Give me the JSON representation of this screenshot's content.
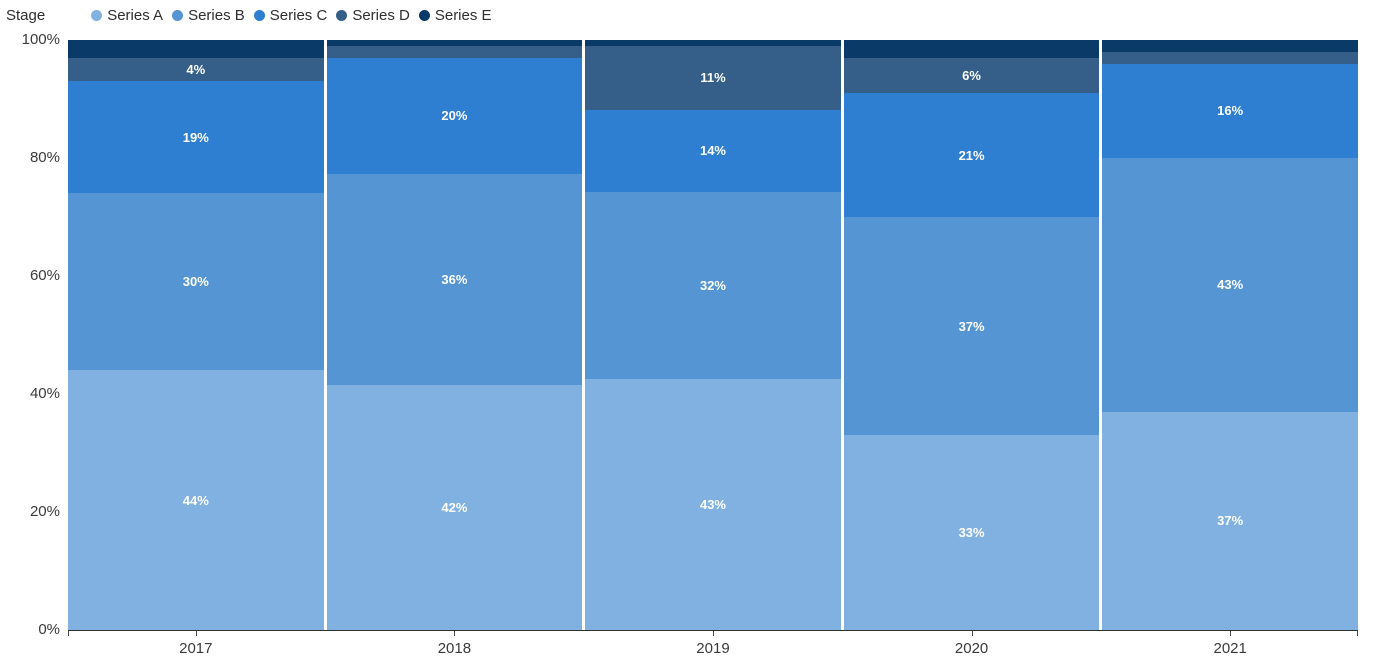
{
  "legend": {
    "title": "Stage",
    "items": [
      {
        "label": "Series A",
        "color": "#80b1e0"
      },
      {
        "label": "Series B",
        "color": "#5695d3"
      },
      {
        "label": "Series C",
        "color": "#2e7fd1"
      },
      {
        "label": "Series D",
        "color": "#355f88"
      },
      {
        "label": "Series E",
        "color": "#0a3a68"
      }
    ]
  },
  "y_axis": {
    "ticks": [
      "0%",
      "20%",
      "40%",
      "60%",
      "80%",
      "100%"
    ]
  },
  "chart_data": {
    "type": "bar",
    "variant": "100-percent-stacked-column",
    "title": "",
    "legend_title": "Stage",
    "legend_position": "top-left",
    "grid": false,
    "categories": [
      "2017",
      "2018",
      "2019",
      "2020",
      "2021"
    ],
    "series": [
      {
        "name": "Series A",
        "color": "#80b1e0",
        "values": [
          44,
          42,
          43,
          33,
          37
        ],
        "labels": [
          "44%",
          "42%",
          "43%",
          "33%",
          "37%"
        ]
      },
      {
        "name": "Series B",
        "color": "#5695d3",
        "values": [
          30,
          36,
          32,
          37,
          43
        ],
        "labels": [
          "30%",
          "36%",
          "32%",
          "37%",
          "43%"
        ]
      },
      {
        "name": "Series C",
        "color": "#2e7fd1",
        "values": [
          19,
          20,
          14,
          21,
          16
        ],
        "labels": [
          "19%",
          "20%",
          "14%",
          "21%",
          "16%"
        ]
      },
      {
        "name": "Series D",
        "color": "#355f88",
        "values": [
          4,
          2,
          11,
          6,
          2
        ],
        "labels": [
          "4%",
          "",
          "11%",
          "6%",
          ""
        ]
      },
      {
        "name": "Series E",
        "color": "#0a3a68",
        "values": [
          3,
          1,
          1,
          3,
          2
        ],
        "labels": [
          "",
          "",
          "",
          "",
          ""
        ]
      }
    ],
    "ylim": [
      0,
      100
    ],
    "y_ticks": [
      "0%",
      "20%",
      "40%",
      "60%",
      "80%",
      "100%"
    ],
    "value_label_color": "#ffffff",
    "axis_color": "#2f2f2f",
    "xlabel": "",
    "ylabel": ""
  }
}
